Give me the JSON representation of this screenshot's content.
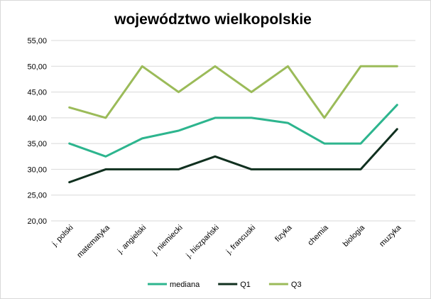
{
  "chart_data": {
    "type": "line",
    "title": "województwo wielkopolskie",
    "categories": [
      "j. polski",
      "matematyka",
      "j. angielski",
      "j. niemiecki",
      "j. hiszpański",
      "j. francuski",
      "fizyka",
      "chemia",
      "biologia",
      "muzyka"
    ],
    "series": [
      {
        "name": "mediana",
        "color": "#2db58e",
        "values": [
          35,
          32.5,
          36,
          37.5,
          40,
          40,
          39,
          35,
          35,
          42.5
        ]
      },
      {
        "name": "Q1",
        "color": "#10301f",
        "values": [
          27.5,
          30,
          30,
          30,
          32.5,
          30,
          30,
          30,
          30,
          37.8
        ]
      },
      {
        "name": "Q3",
        "color": "#9bbb59",
        "values": [
          42,
          40,
          50,
          45,
          50,
          45,
          50,
          40,
          50,
          50
        ]
      }
    ],
    "ylim": [
      20,
      55
    ],
    "yticks": [
      "20,00",
      "25,00",
      "30,00",
      "35,00",
      "40,00",
      "45,00",
      "50,00",
      "55,00"
    ],
    "grid": true,
    "legend": "bottom",
    "xlabel": "",
    "ylabel": ""
  }
}
